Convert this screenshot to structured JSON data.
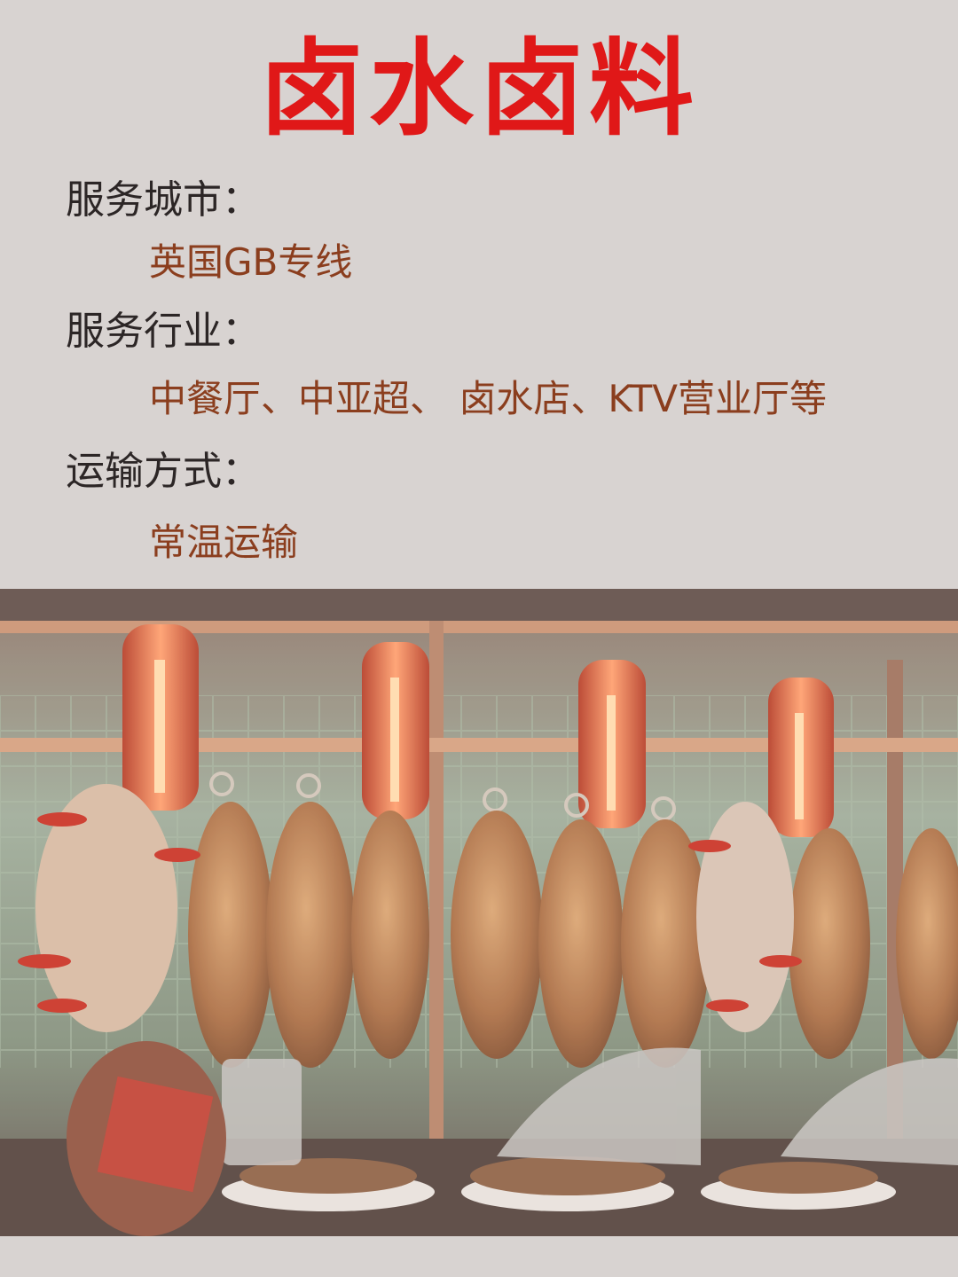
{
  "title": "卤水卤料",
  "sections": [
    {
      "label": "服务城市：",
      "value": "英国GB专线"
    },
    {
      "label": "服务行业：",
      "value": "中餐厅、中亚超、 卤水店、KTV营业厅等"
    },
    {
      "label": "运输方式：",
      "value": "常温运输"
    }
  ],
  "colors": {
    "background": "#d8d3d1",
    "title": "#e01818",
    "label": "#2c2626",
    "value": "#8b3e1e"
  },
  "photo": {
    "subject": "roast-duck-display-window"
  }
}
